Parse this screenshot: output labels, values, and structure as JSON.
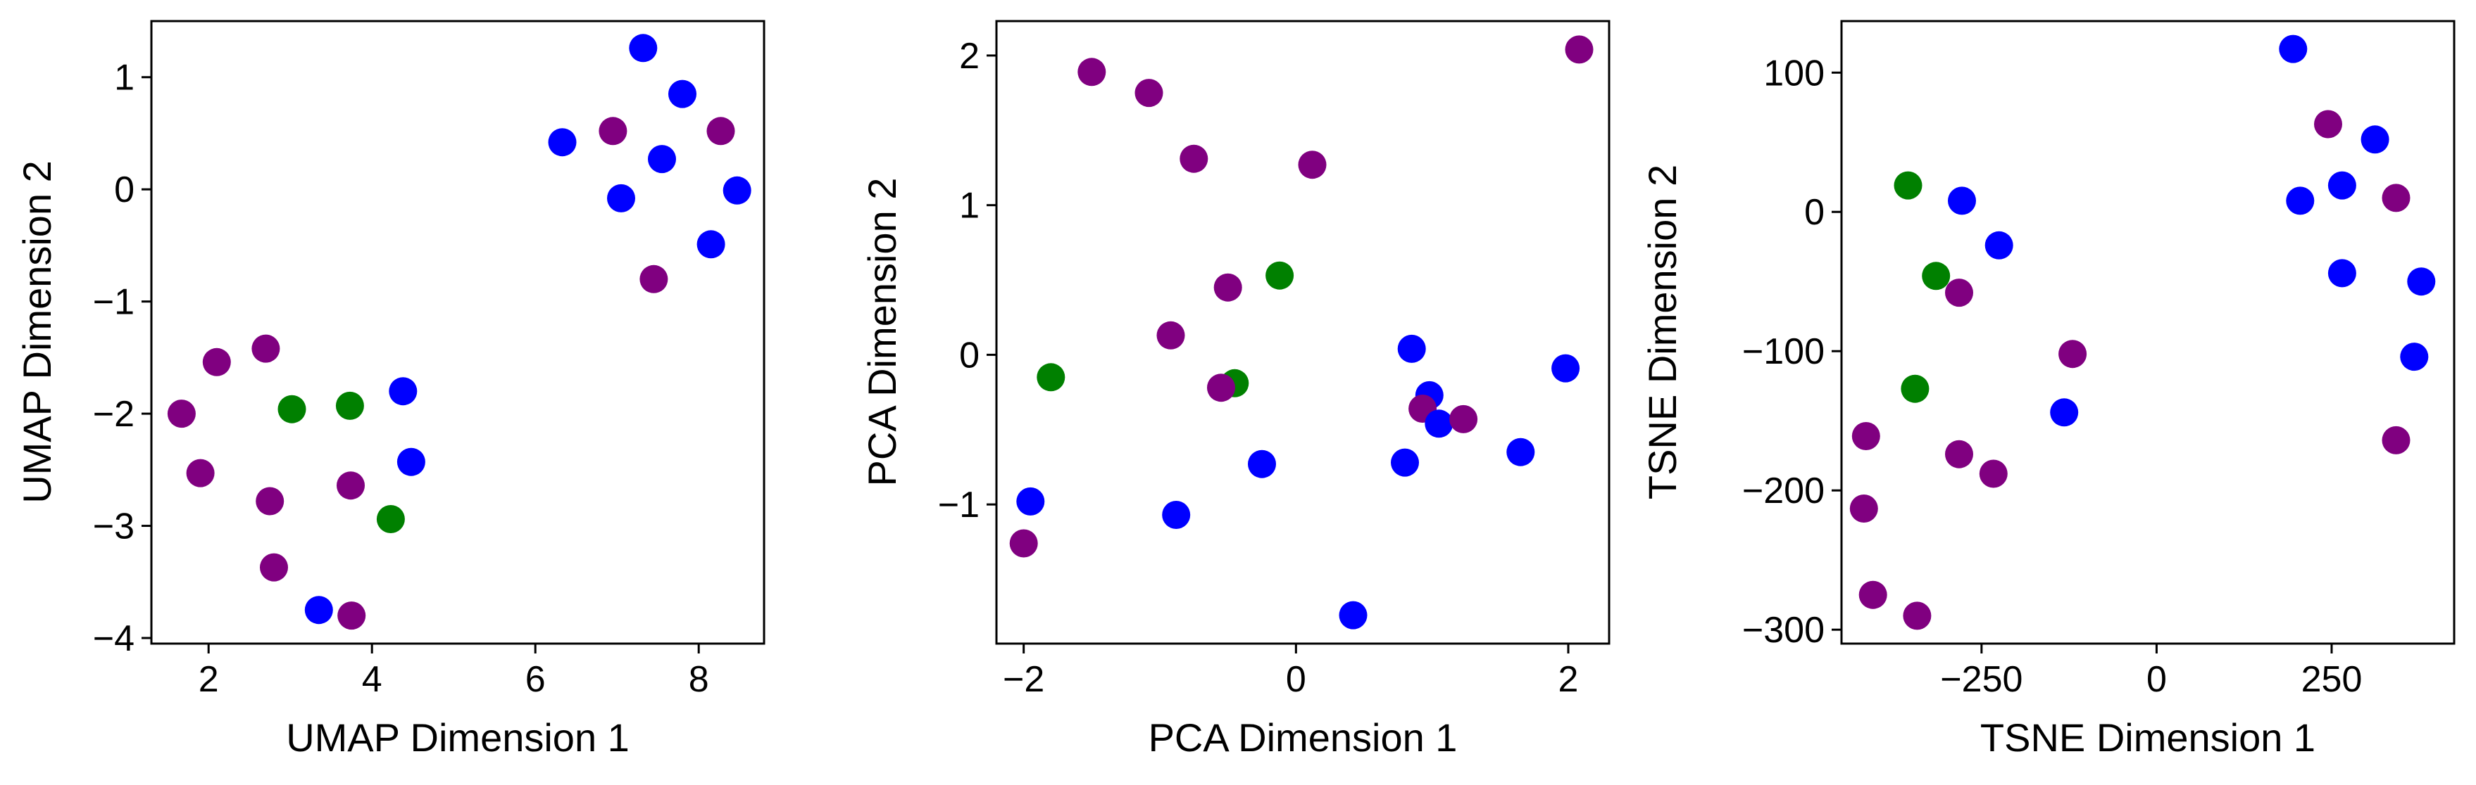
{
  "colors": {
    "purple": "#800080",
    "blue": "#0000ff",
    "green": "#008000"
  },
  "chart_data": [
    {
      "type": "scatter",
      "title": "",
      "xlabel": "UMAP Dimension 1",
      "ylabel": "UMAP Dimension 2",
      "xlim": [
        1.3,
        8.8
      ],
      "ylim": [
        -4.05,
        1.5
      ],
      "xticks": [
        2,
        4,
        6,
        8
      ],
      "xtick_labels": [
        "2",
        "4",
        "6",
        "8"
      ],
      "yticks": [
        -4,
        -3,
        -2,
        -1,
        0,
        1
      ],
      "ytick_labels": [
        "−4",
        "−3",
        "−2",
        "−1",
        "0",
        "1"
      ],
      "grid": false,
      "points": [
        {
          "x": 7.32,
          "y": 1.26,
          "color": "blue"
        },
        {
          "x": 7.8,
          "y": 0.85,
          "color": "blue"
        },
        {
          "x": 6.95,
          "y": 0.52,
          "color": "purple"
        },
        {
          "x": 8.27,
          "y": 0.52,
          "color": "purple"
        },
        {
          "x": 6.33,
          "y": 0.42,
          "color": "blue"
        },
        {
          "x": 7.55,
          "y": 0.27,
          "color": "blue"
        },
        {
          "x": 7.05,
          "y": -0.08,
          "color": "blue"
        },
        {
          "x": 8.47,
          "y": -0.01,
          "color": "blue"
        },
        {
          "x": 8.15,
          "y": -0.49,
          "color": "blue"
        },
        {
          "x": 7.45,
          "y": -0.8,
          "color": "purple"
        },
        {
          "x": 2.7,
          "y": -1.42,
          "color": "purple"
        },
        {
          "x": 2.1,
          "y": -1.54,
          "color": "purple"
        },
        {
          "x": 4.38,
          "y": -1.8,
          "color": "blue"
        },
        {
          "x": 3.73,
          "y": -1.93,
          "color": "green"
        },
        {
          "x": 3.02,
          "y": -1.96,
          "color": "green"
        },
        {
          "x": 1.67,
          "y": -2.0,
          "color": "purple"
        },
        {
          "x": 4.48,
          "y": -2.43,
          "color": "blue"
        },
        {
          "x": 1.9,
          "y": -2.53,
          "color": "purple"
        },
        {
          "x": 3.74,
          "y": -2.64,
          "color": "purple"
        },
        {
          "x": 2.75,
          "y": -2.78,
          "color": "purple"
        },
        {
          "x": 4.23,
          "y": -2.94,
          "color": "green"
        },
        {
          "x": 2.8,
          "y": -3.37,
          "color": "purple"
        },
        {
          "x": 3.35,
          "y": -3.75,
          "color": "blue"
        },
        {
          "x": 3.75,
          "y": -3.8,
          "color": "purple"
        }
      ]
    },
    {
      "type": "scatter",
      "title": "",
      "xlabel": "PCA Dimension 1",
      "ylabel": "PCA Dimension 2",
      "xlim": [
        -2.2,
        2.3
      ],
      "ylim": [
        -1.93,
        2.23
      ],
      "xticks": [
        -2,
        0,
        2
      ],
      "xtick_labels": [
        "−2",
        "0",
        "2"
      ],
      "yticks": [
        -1,
        0,
        1,
        2
      ],
      "ytick_labels": [
        "−1",
        "0",
        "1",
        "2"
      ],
      "grid": false,
      "points": [
        {
          "x": 2.08,
          "y": 2.04,
          "color": "purple"
        },
        {
          "x": -1.5,
          "y": 1.89,
          "color": "purple"
        },
        {
          "x": -1.08,
          "y": 1.75,
          "color": "purple"
        },
        {
          "x": -0.75,
          "y": 1.31,
          "color": "purple"
        },
        {
          "x": 0.12,
          "y": 1.27,
          "color": "purple"
        },
        {
          "x": -0.12,
          "y": 0.53,
          "color": "green"
        },
        {
          "x": -0.5,
          "y": 0.45,
          "color": "purple"
        },
        {
          "x": -0.92,
          "y": 0.13,
          "color": "purple"
        },
        {
          "x": 0.85,
          "y": 0.04,
          "color": "blue"
        },
        {
          "x": -1.8,
          "y": -0.15,
          "color": "green"
        },
        {
          "x": -0.45,
          "y": -0.19,
          "color": "green"
        },
        {
          "x": -0.55,
          "y": -0.22,
          "color": "purple"
        },
        {
          "x": 1.98,
          "y": -0.09,
          "color": "blue"
        },
        {
          "x": 0.98,
          "y": -0.27,
          "color": "blue"
        },
        {
          "x": 0.93,
          "y": -0.36,
          "color": "purple"
        },
        {
          "x": 1.05,
          "y": -0.46,
          "color": "blue"
        },
        {
          "x": 1.23,
          "y": -0.43,
          "color": "purple"
        },
        {
          "x": 1.65,
          "y": -0.65,
          "color": "blue"
        },
        {
          "x": -0.25,
          "y": -0.73,
          "color": "blue"
        },
        {
          "x": 0.8,
          "y": -0.72,
          "color": "blue"
        },
        {
          "x": -1.95,
          "y": -0.98,
          "color": "blue"
        },
        {
          "x": -0.88,
          "y": -1.07,
          "color": "blue"
        },
        {
          "x": -2.0,
          "y": -1.26,
          "color": "purple"
        },
        {
          "x": 0.42,
          "y": -1.74,
          "color": "blue"
        }
      ]
    },
    {
      "type": "scatter",
      "title": "",
      "xlabel": "TSNE Dimension 1",
      "ylabel": "TSNE Dimension 2",
      "xlim": [
        -450,
        425
      ],
      "ylim": [
        -310,
        137
      ],
      "xticks": [
        -250,
        0,
        250
      ],
      "xtick_labels": [
        "−250",
        "0",
        "250"
      ],
      "yticks": [
        -300,
        -200,
        -100,
        0,
        100
      ],
      "ytick_labels": [
        "−300",
        "−200",
        "−100",
        "0",
        "100"
      ],
      "grid": false,
      "points": [
        {
          "x": 195,
          "y": 117,
          "color": "blue"
        },
        {
          "x": 245,
          "y": 63,
          "color": "purple"
        },
        {
          "x": 312,
          "y": 52,
          "color": "blue"
        },
        {
          "x": 265,
          "y": 19,
          "color": "blue"
        },
        {
          "x": 342,
          "y": 10,
          "color": "purple"
        },
        {
          "x": 205,
          "y": 8,
          "color": "blue"
        },
        {
          "x": -355,
          "y": 19,
          "color": "green"
        },
        {
          "x": -278,
          "y": 8,
          "color": "blue"
        },
        {
          "x": -225,
          "y": -24,
          "color": "blue"
        },
        {
          "x": 265,
          "y": -44,
          "color": "blue"
        },
        {
          "x": 378,
          "y": -50,
          "color": "blue"
        },
        {
          "x": -315,
          "y": -46,
          "color": "green"
        },
        {
          "x": -282,
          "y": -58,
          "color": "purple"
        },
        {
          "x": 368,
          "y": -104,
          "color": "blue"
        },
        {
          "x": -120,
          "y": -102,
          "color": "purple"
        },
        {
          "x": -345,
          "y": -127,
          "color": "green"
        },
        {
          "x": -132,
          "y": -144,
          "color": "blue"
        },
        {
          "x": -415,
          "y": -161,
          "color": "purple"
        },
        {
          "x": 342,
          "y": -164,
          "color": "purple"
        },
        {
          "x": -282,
          "y": -174,
          "color": "purple"
        },
        {
          "x": -233,
          "y": -188,
          "color": "purple"
        },
        {
          "x": -418,
          "y": -213,
          "color": "purple"
        },
        {
          "x": -405,
          "y": -275,
          "color": "purple"
        },
        {
          "x": -342,
          "y": -290,
          "color": "purple"
        }
      ]
    }
  ]
}
